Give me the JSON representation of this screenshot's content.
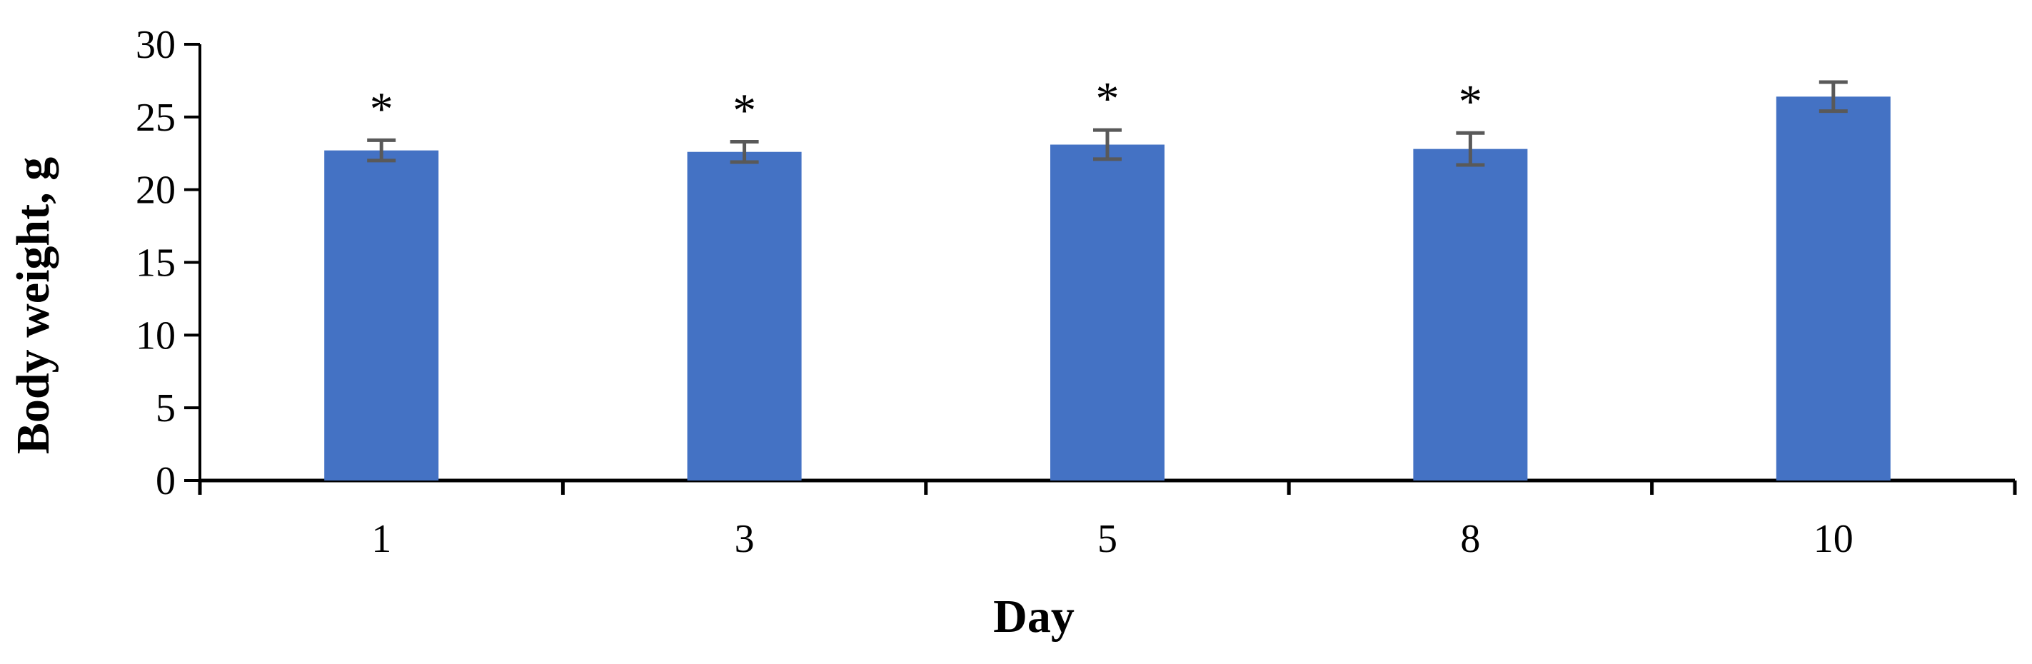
{
  "chart_data": {
    "type": "bar",
    "title": "",
    "xlabel": "Day",
    "ylabel": "Body weight, g",
    "categories": [
      "1",
      "3",
      "5",
      "8",
      "10"
    ],
    "values": [
      22.7,
      22.6,
      23.1,
      22.8,
      26.4
    ],
    "error": [
      0.7,
      0.7,
      1.0,
      1.1,
      1.0
    ],
    "annotations": [
      "*",
      "*",
      "*",
      "*",
      ""
    ],
    "ylim": [
      0,
      30
    ],
    "yticks": [
      0,
      5,
      10,
      15,
      20,
      25,
      30
    ],
    "grid": false,
    "legend": "none",
    "bar_color": "#4472C4",
    "error_color": "#595959"
  }
}
